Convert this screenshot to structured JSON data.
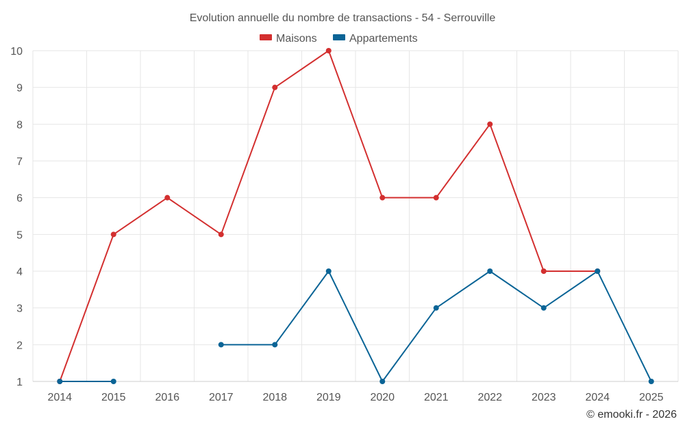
{
  "chart_data": {
    "type": "line",
    "title": "Evolution annuelle du nombre de transactions - 54 - Serrouville",
    "xlabel": "",
    "ylabel": "",
    "categories": [
      "2014",
      "2015",
      "2016",
      "2017",
      "2018",
      "2019",
      "2020",
      "2021",
      "2022",
      "2023",
      "2024",
      "2025"
    ],
    "ylim": [
      1,
      10
    ],
    "yticks": [
      "1",
      "2",
      "3",
      "4",
      "5",
      "6",
      "7",
      "8",
      "9",
      "10"
    ],
    "grid": true,
    "legend_position": "top-center",
    "series": [
      {
        "name": "Maisons",
        "color": "#d32f2f",
        "values": [
          1,
          5,
          6,
          5,
          9,
          10,
          6,
          6,
          8,
          4,
          4,
          null
        ]
      },
      {
        "name": "Appartements",
        "color": "#0a6496",
        "values": [
          1,
          1,
          null,
          2,
          2,
          4,
          1,
          3,
          4,
          3,
          4,
          1
        ]
      }
    ],
    "credit": "© emooki.fr - 2026"
  }
}
